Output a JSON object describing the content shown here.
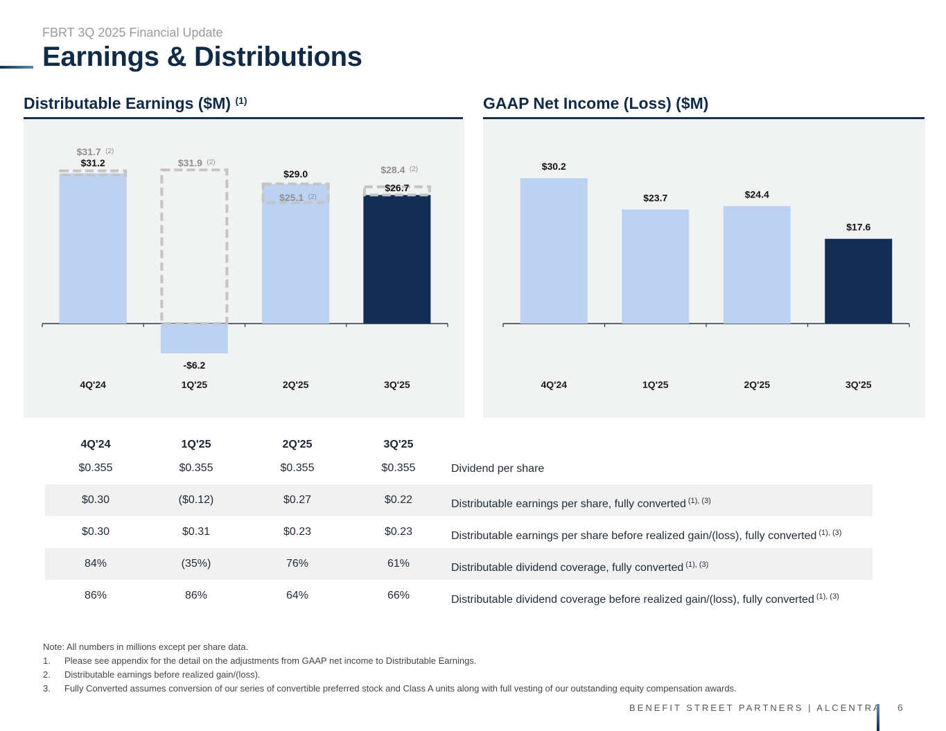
{
  "header": {
    "subtitle": "FBRT 3Q 2025 Financial Update",
    "title": "Earnings & Distributions"
  },
  "colors": {
    "navy": "#142d55",
    "light_blue": "#bdd2f0",
    "panel_bg": "#f1f2f2",
    "dashed_outline": "#c4c4c4",
    "muted_label": "#8f8f8f"
  },
  "chart_data": [
    {
      "type": "bar",
      "title": "Distributable Earnings ($M)",
      "title_footnote": "(1)",
      "categories": [
        "4Q'24",
        "1Q'25",
        "2Q'25",
        "3Q'25"
      ],
      "series": [
        {
          "name": "Distributable Earnings",
          "values": [
            31.2,
            -6.2,
            29.0,
            26.7
          ],
          "labels": [
            "$31.2",
            "-$6.2",
            "$29.0",
            "$26.7"
          ],
          "colors": [
            "#bdd2f0",
            "#bdd2f0",
            "#bdd2f0",
            "#142d55"
          ]
        },
        {
          "name": "Distributable earnings before realized gain/(loss)",
          "style": "dashed-outline",
          "values": [
            31.7,
            31.9,
            25.1,
            28.4
          ],
          "labels": [
            "$31.7",
            "$31.9",
            "$25.1",
            "$28.4"
          ],
          "footnote": "(2)"
        }
      ],
      "xlabel": "",
      "ylabel": "",
      "ylim": [
        -10,
        36
      ],
      "grid": false
    },
    {
      "type": "bar",
      "title": "GAAP Net Income (Loss) ($M)",
      "categories": [
        "4Q'24",
        "1Q'25",
        "2Q'25",
        "3Q'25"
      ],
      "series": [
        {
          "name": "GAAP Net Income (Loss)",
          "values": [
            30.2,
            23.7,
            24.4,
            17.6
          ],
          "labels": [
            "$30.2",
            "$23.7",
            "$24.4",
            "$17.6"
          ],
          "colors": [
            "#bdd2f0",
            "#bdd2f0",
            "#bdd2f0",
            "#142d55"
          ]
        }
      ],
      "xlabel": "",
      "ylabel": "",
      "ylim": [
        -10,
        36
      ],
      "grid": false
    }
  ],
  "table": {
    "headers": [
      "4Q'24",
      "1Q'25",
      "2Q'25",
      "3Q'25"
    ],
    "rows": [
      {
        "cells": [
          "$0.355",
          "$0.355",
          "$0.355",
          "$0.355"
        ],
        "label": "Dividend per share",
        "footnote": "",
        "shaded": false
      },
      {
        "cells": [
          "$0.30",
          "($0.12)",
          "$0.27",
          "$0.22"
        ],
        "label": "Distributable earnings per share, fully converted",
        "footnote": "(1), (3)",
        "shaded": true
      },
      {
        "cells": [
          "$0.30",
          "$0.31",
          "$0.23",
          "$0.23"
        ],
        "label": "Distributable earnings per share before realized gain/(loss), fully converted",
        "footnote": "(1), (3)",
        "shaded": false
      },
      {
        "cells": [
          "84%",
          "(35%)",
          "76%",
          "61%"
        ],
        "label": "Distributable dividend coverage, fully converted",
        "footnote": "(1), (3)",
        "shaded": true
      },
      {
        "cells": [
          "86%",
          "86%",
          "64%",
          "66%"
        ],
        "label": "Distributable dividend coverage before realized gain/(loss), fully converted",
        "footnote": "(1), (3)",
        "shaded": false
      }
    ]
  },
  "notes": {
    "intro": "Note: All numbers in millions except per share data.",
    "items": [
      {
        "num": "1.",
        "text": "Please see appendix for the detail on the adjustments from GAAP net income to Distributable Earnings."
      },
      {
        "num": "2.",
        "text": "Distributable earnings before realized gain/(loss)."
      },
      {
        "num": "3.",
        "text": "Fully Converted assumes conversion of our series of convertible preferred stock and Class A units along with full vesting of our outstanding equity compensation awards."
      }
    ]
  },
  "footer": {
    "brand": "BENEFIT STREET PARTNERS | ALCENTRA",
    "page_number": "6"
  }
}
